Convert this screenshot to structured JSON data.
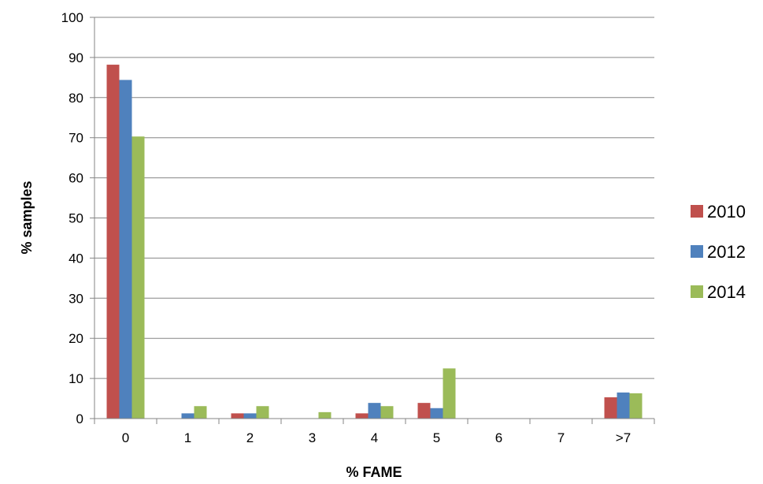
{
  "chart_data": {
    "type": "bar",
    "title": "",
    "xlabel": "% FAME",
    "ylabel": "% samples",
    "categories": [
      "0",
      "1",
      "2",
      "3",
      "4",
      "5",
      "6",
      "7",
      ">7"
    ],
    "ylim": [
      0,
      100
    ],
    "yticks": [
      "0",
      "10",
      "20",
      "30",
      "40",
      "50",
      "60",
      "70",
      "80",
      "90",
      "100"
    ],
    "grid": true,
    "legend_position": "right",
    "series": [
      {
        "name": "2010",
        "color": "#C0504D",
        "values": [
          88.2,
          0,
          1.3,
          0,
          1.3,
          3.9,
          0,
          0,
          5.3
        ]
      },
      {
        "name": "2012",
        "color": "#4F81BD",
        "values": [
          84.4,
          1.3,
          1.3,
          0,
          3.9,
          2.6,
          0,
          0,
          6.5
        ]
      },
      {
        "name": "2014",
        "color": "#9BBB59",
        "values": [
          70.3,
          3.1,
          3.1,
          1.6,
          3.1,
          12.5,
          0,
          0,
          6.3
        ]
      }
    ]
  }
}
